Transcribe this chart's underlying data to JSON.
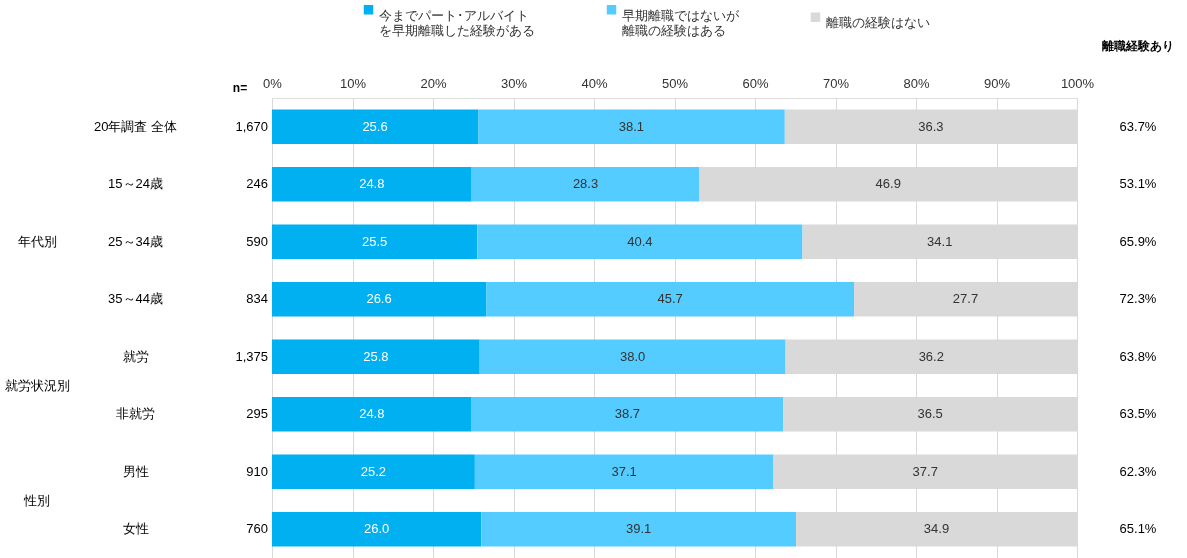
{
  "chart_data": {
    "type": "bar",
    "orientation": "horizontal",
    "stacked": true,
    "categories": [
      "20年調査 全体",
      "15～24歳",
      "25～34歳",
      "35～44歳",
      "就労",
      "非就労",
      "男性",
      "女性"
    ],
    "series": [
      {
        "name": "今までパート･アルバイトを早期離職した経験がある",
        "color": "#00b0f0",
        "values": [
          25.6,
          24.8,
          25.5,
          26.6,
          25.8,
          24.8,
          25.2,
          26.0
        ],
        "value_labels": [
          "25.6",
          "24.8",
          "25.5",
          "26.6",
          "25.8",
          "24.8",
          "25.2",
          "26.0"
        ]
      },
      {
        "name": "早期離職ではないが離職の経験はある",
        "color": "#55ccff",
        "values": [
          38.1,
          28.3,
          40.4,
          45.7,
          38.0,
          38.7,
          37.1,
          39.1
        ],
        "value_labels": [
          "38.1",
          "28.3",
          "40.4",
          "45.7",
          "38.0",
          "38.7",
          "37.1",
          "39.1"
        ]
      },
      {
        "name": "離職の経験はない",
        "color": "#d9d9d9",
        "values": [
          36.3,
          46.9,
          34.1,
          27.7,
          36.2,
          36.5,
          37.7,
          34.9
        ],
        "value_labels": [
          "36.3",
          "46.9",
          "34.1",
          "27.7",
          "36.2",
          "36.5",
          "37.7",
          "34.9"
        ]
      }
    ],
    "xlim": [
      0,
      100
    ],
    "xticks": [
      {
        "value": 0,
        "label": "0%"
      },
      {
        "value": 10,
        "label": "10%"
      },
      {
        "value": 20,
        "label": "20%"
      },
      {
        "value": 30,
        "label": "30%"
      },
      {
        "value": 40,
        "label": "40%"
      },
      {
        "value": 50,
        "label": "50%"
      },
      {
        "value": 60,
        "label": "60%"
      },
      {
        "value": 70,
        "label": "70%"
      },
      {
        "value": 80,
        "label": "80%"
      },
      {
        "value": 90,
        "label": "90%"
      },
      {
        "value": 100,
        "label": "100%"
      }
    ],
    "grid": "x",
    "legend": "top",
    "annotations": [
      "n=",
      "離職経験あり",
      "1,670",
      "246",
      "590",
      "834",
      "1,375",
      "295",
      "910",
      "760",
      "63.7%",
      "53.1%",
      "65.9%",
      "72.3%",
      "63.8%",
      "63.5%",
      "62.3%",
      "65.1%",
      "年代別",
      "就労状況別",
      "性別"
    ]
  }
}
